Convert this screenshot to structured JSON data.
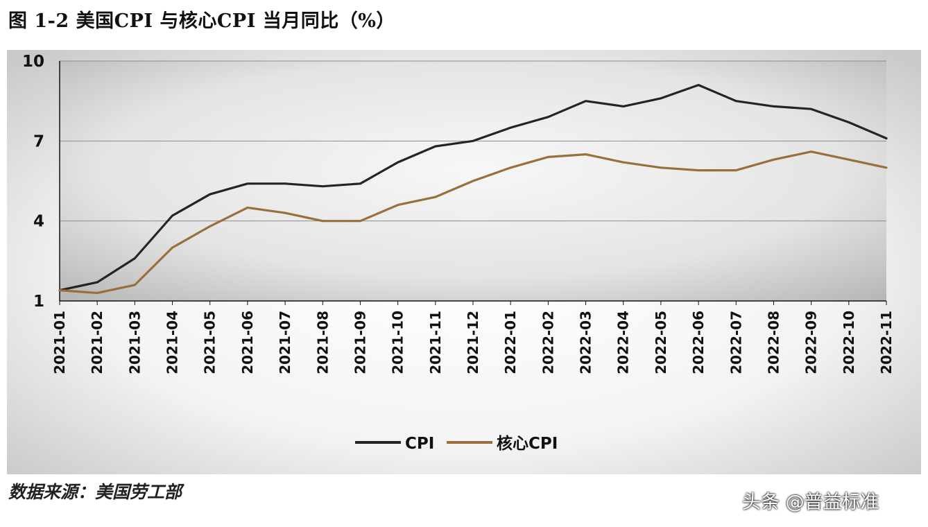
{
  "title": "图 1-2 美国CPI 与核心CPI 当月同比（%）",
  "source": "数据来源：美国劳工部",
  "watermark": "头条 @普益标准",
  "colors": {
    "cpi": "#232428",
    "core_cpi": "#9a6f3c",
    "grid": "#8c8c8c"
  },
  "chart_data": {
    "type": "line",
    "title": "",
    "xlabel": "",
    "ylabel": "",
    "categories": [
      "2021-01",
      "2021-02",
      "2021-03",
      "2021-04",
      "2021-05",
      "2021-06",
      "2021-07",
      "2021-08",
      "2021-09",
      "2021-10",
      "2021-11",
      "2021-12",
      "2022-01",
      "2022-02",
      "2022-03",
      "2022-04",
      "2022-05",
      "2022-06",
      "2022-07",
      "2022-08",
      "2022-09",
      "2022-10",
      "2022-11"
    ],
    "ylim": [
      1,
      10
    ],
    "yticks": [
      1,
      4,
      7,
      10
    ],
    "grid": true,
    "legend_position": "bottom-center",
    "series": [
      {
        "name": "CPI",
        "values": [
          1.4,
          1.7,
          2.6,
          4.2,
          5.0,
          5.4,
          5.4,
          5.3,
          5.4,
          6.2,
          6.8,
          7.0,
          7.5,
          7.9,
          8.5,
          8.3,
          8.6,
          9.1,
          8.5,
          8.3,
          8.2,
          7.7,
          7.1
        ]
      },
      {
        "name": "核心CPI",
        "values": [
          1.4,
          1.3,
          1.6,
          3.0,
          3.8,
          4.5,
          4.3,
          4.0,
          4.0,
          4.6,
          4.9,
          5.5,
          6.0,
          6.4,
          6.5,
          6.2,
          6.0,
          5.9,
          5.9,
          6.3,
          6.6,
          6.3,
          6.0
        ]
      }
    ]
  }
}
